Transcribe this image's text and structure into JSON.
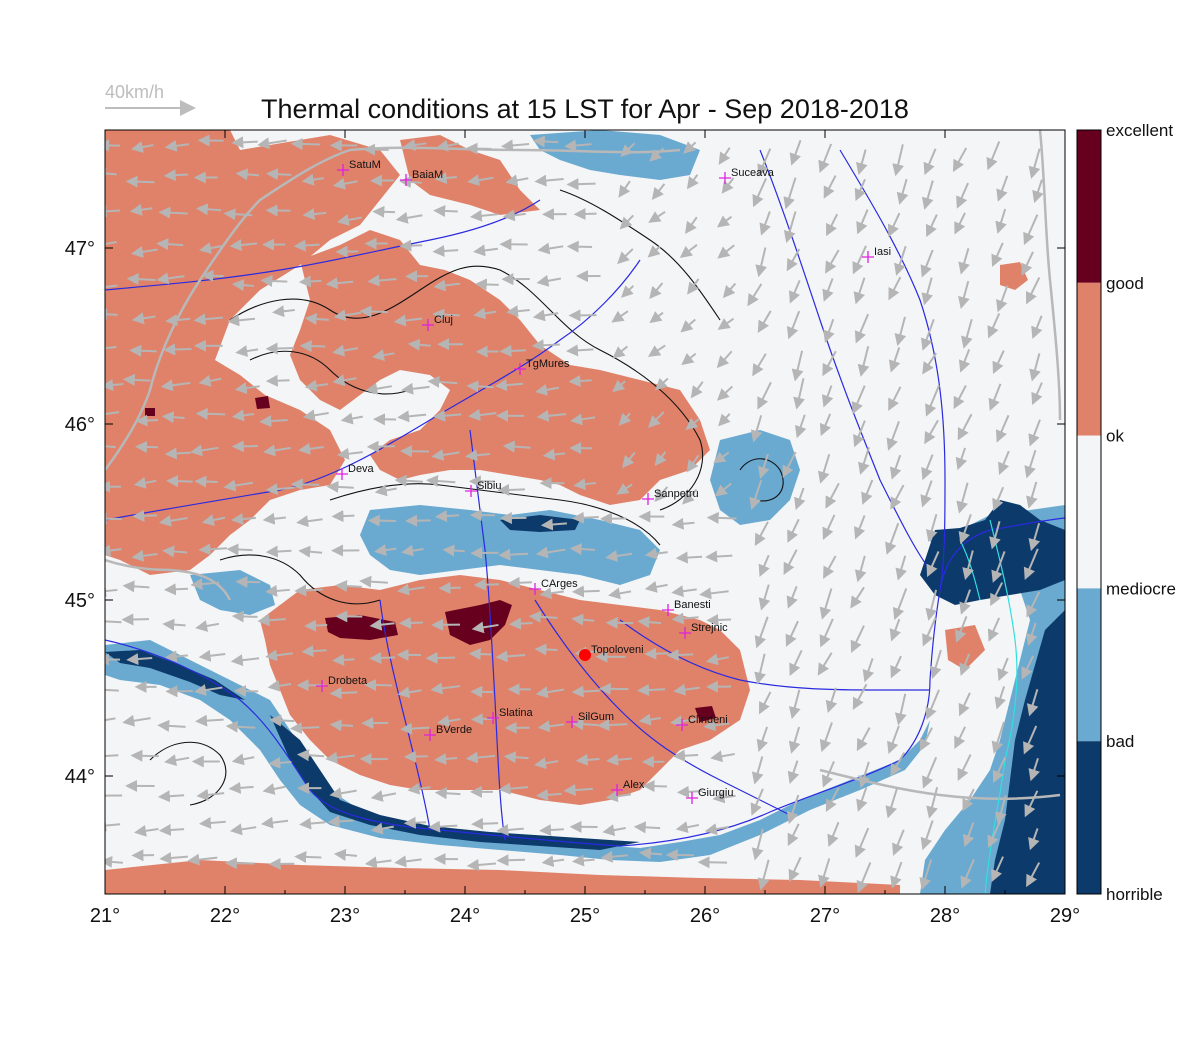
{
  "title": "Thermal conditions at 15 LST for Apr - Sep  2018-2018",
  "wind_scale": {
    "label": "40km/h"
  },
  "axes": {
    "x_ticks": [
      "21°",
      "22°",
      "23°",
      "24°",
      "25°",
      "26°",
      "27°",
      "28°",
      "29°"
    ],
    "y_ticks": [
      "47°",
      "46°",
      "45°",
      "44°"
    ]
  },
  "colorbar": {
    "labels": [
      "excellent",
      "good",
      "ok",
      "mediocre",
      "bad",
      "horrible"
    ],
    "colors": [
      "#67001f",
      "#e0826a",
      "#f4f5f7",
      "#6aa9d0",
      "#0c3a6a"
    ]
  },
  "colors": {
    "ok": "#f4f5f7",
    "good": "#e0826a",
    "excellent": "#67001f",
    "mediocre": "#6aa9d0",
    "bad": "#0c3a6a",
    "river": "#2a2ae0",
    "border": "#b8b8b8",
    "city_marker": "#e020e0",
    "highlight": "#ff0000",
    "wind_arrow": "#b5b5b5",
    "contour": "#111111",
    "coast": "#30e0e0"
  },
  "cities": [
    {
      "name": "SatuM"
    },
    {
      "name": "BaiaM"
    },
    {
      "name": "Suceava"
    },
    {
      "name": "Iasi"
    },
    {
      "name": "Cluj"
    },
    {
      "name": "TgMures"
    },
    {
      "name": "Deva"
    },
    {
      "name": "Sibiu"
    },
    {
      "name": "Sanpetru"
    },
    {
      "name": "CArges"
    },
    {
      "name": "Banesti"
    },
    {
      "name": "Strejnic"
    },
    {
      "name": "Topoloveni"
    },
    {
      "name": "Drobeta"
    },
    {
      "name": "Slatina"
    },
    {
      "name": "SilGum"
    },
    {
      "name": "Clindeni"
    },
    {
      "name": "BVerde"
    },
    {
      "name": "Alex"
    },
    {
      "name": "Giurgiu"
    }
  ]
}
